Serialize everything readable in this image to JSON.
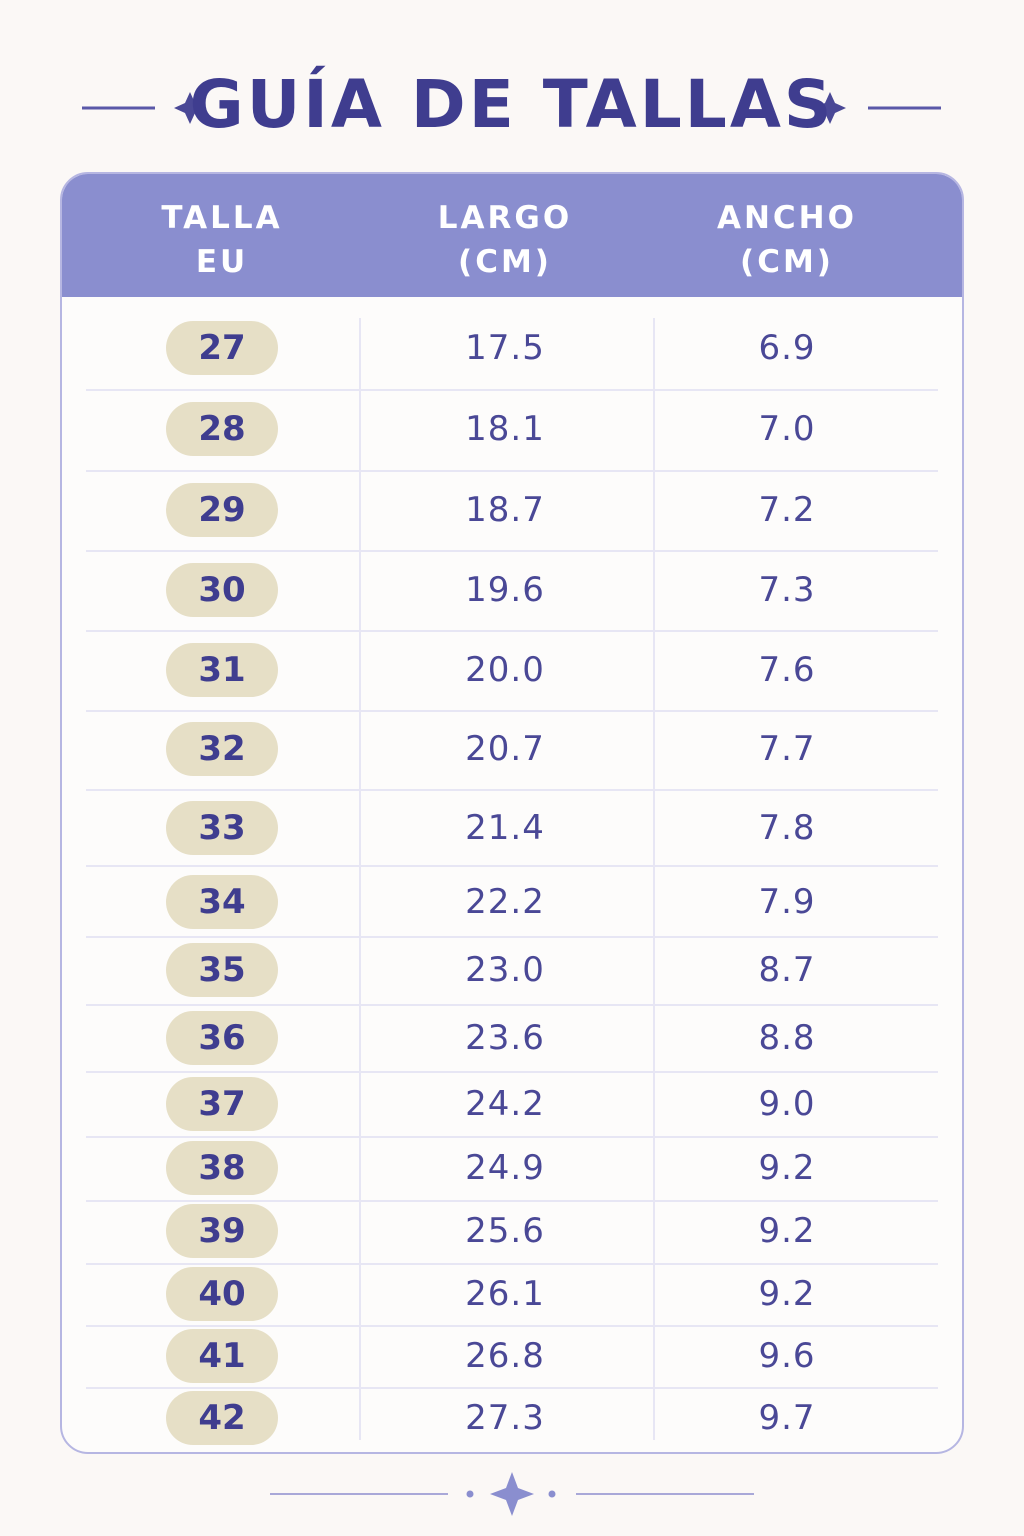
{
  "header": {
    "title": "GUÍA DE TALLAS"
  },
  "table": {
    "columns": [
      "TALLA\nEU",
      "LARGO\n(CM)",
      "ANCHO\n(CM)"
    ],
    "rows": [
      [
        "27",
        "17.5",
        "6.9"
      ],
      [
        "28",
        "18.1",
        "7.0"
      ],
      [
        "29",
        "18.7",
        "7.2"
      ],
      [
        "30",
        "19.6",
        "7.3"
      ],
      [
        "31",
        "20.0",
        "7.6"
      ],
      [
        "32",
        "20.7",
        "7.7"
      ],
      [
        "33",
        "21.4",
        "7.8"
      ],
      [
        "34",
        "22.2",
        "7.9"
      ],
      [
        "35",
        "23.0",
        "8.7"
      ],
      [
        "36",
        "23.6",
        "8.8"
      ],
      [
        "37",
        "24.2",
        "9.0"
      ],
      [
        "38",
        "24.9",
        "9.2"
      ],
      [
        "39",
        "25.6",
        "9.2"
      ],
      [
        "40",
        "26.1",
        "9.2"
      ],
      [
        "41",
        "26.8",
        "9.6"
      ],
      [
        "42",
        "27.3",
        "9.7"
      ]
    ]
  }
}
